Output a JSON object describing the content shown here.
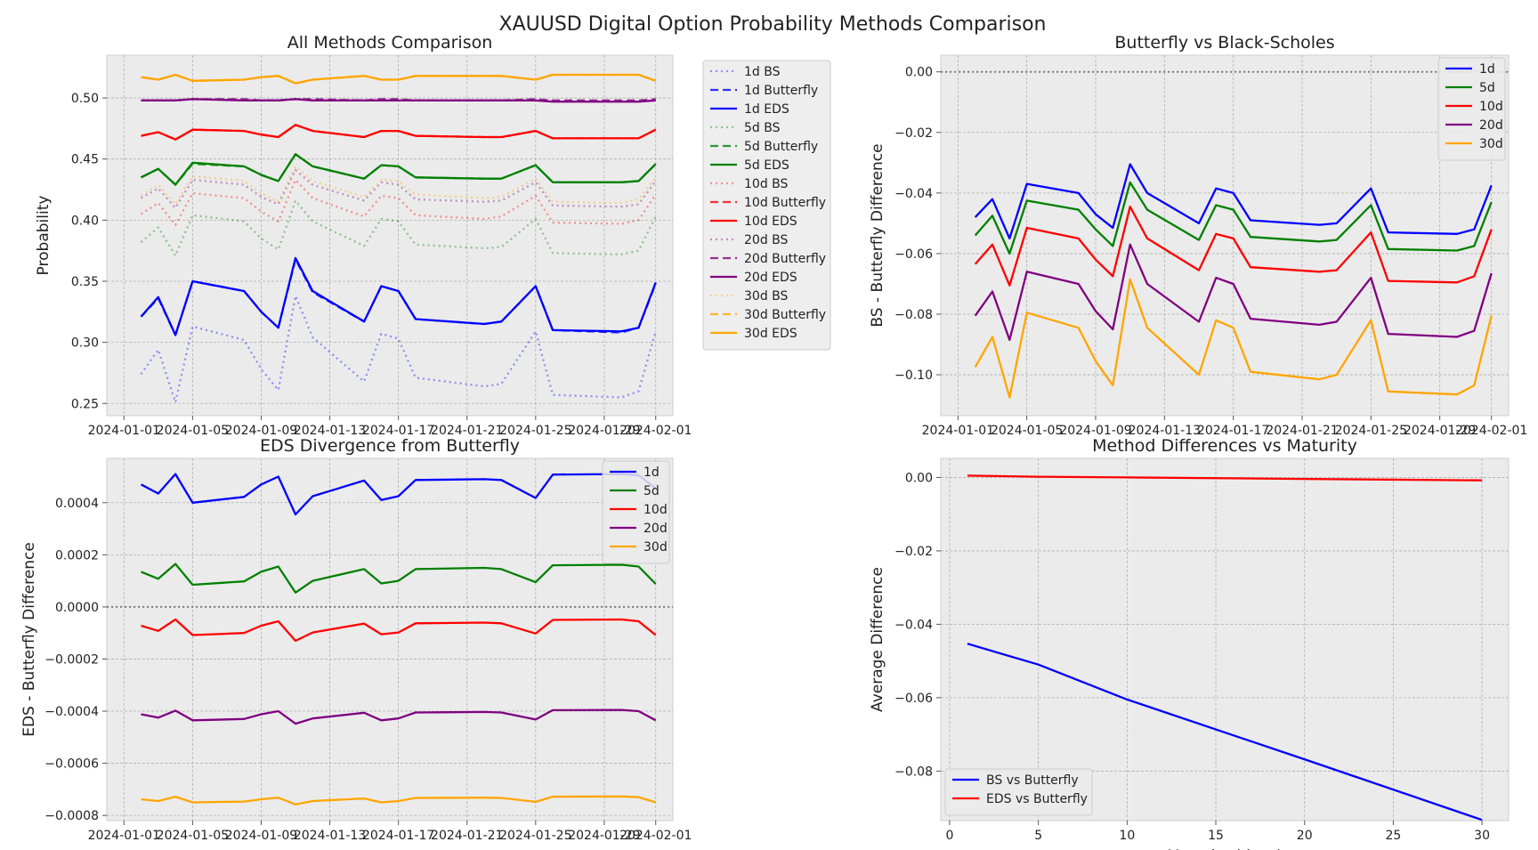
{
  "suptitle": "XAUUSD Digital Option Probability Methods Comparison",
  "colors": {
    "1d": "#0000ff",
    "5d": "#008000",
    "10d": "#ff0000",
    "20d": "#800080",
    "30d": "#ffa500",
    "background": "#ebebeb",
    "grid": "#b0b0b0",
    "zero_line": "#808080"
  },
  "dates": [
    "2024-01-02",
    "2024-01-03",
    "2024-01-04",
    "2024-01-05",
    "2024-01-08",
    "2024-01-09",
    "2024-01-10",
    "2024-01-11",
    "2024-01-12",
    "2024-01-15",
    "2024-01-16",
    "2024-01-17",
    "2024-01-18",
    "2024-01-22",
    "2024-01-23",
    "2024-01-25",
    "2024-01-26",
    "2024-01-30",
    "2024-01-31",
    "2024-02-01"
  ],
  "chart_data": [
    {
      "id": "all_methods",
      "type": "line",
      "title": "All Methods Comparison",
      "xlabel": "",
      "ylabel": "Probability",
      "ylim": [
        0.24,
        0.535
      ],
      "xlim": [
        "2023-12-31",
        "2024-02-02"
      ],
      "yticks": [
        0.25,
        0.3,
        0.35,
        0.4,
        0.45,
        0.5
      ],
      "xticks": [
        "2024-01-01",
        "2024-01-05",
        "2024-01-09",
        "2024-01-13",
        "2024-01-17",
        "2024-01-21",
        "2024-01-25",
        "2024-01-29",
        "2024-02-01"
      ],
      "grid": true,
      "legend": "outside-right",
      "series": [
        {
          "name": "1d BS",
          "color": "1d",
          "style": "dotted",
          "alpha": 0.4,
          "values": [
            0.274,
            0.294,
            0.251,
            0.313,
            0.302,
            0.278,
            0.261,
            0.338,
            0.304,
            0.268,
            0.307,
            0.303,
            0.271,
            0.264,
            0.266,
            0.309,
            0.257,
            0.255,
            0.26,
            0.309
          ]
        },
        {
          "name": "1d Butterfly",
          "color": "1d",
          "style": "dashed",
          "alpha": 0.8,
          "values": [
            0.321,
            0.336,
            0.306,
            0.35,
            0.342,
            0.325,
            0.312,
            0.368,
            0.341,
            0.317,
            0.346,
            0.342,
            0.319,
            0.315,
            0.317,
            0.346,
            0.31,
            0.308,
            0.312,
            0.348
          ]
        },
        {
          "name": "1d EDS",
          "color": "1d",
          "style": "solid",
          "alpha": 1,
          "values": [
            0.321,
            0.337,
            0.306,
            0.35,
            0.342,
            0.325,
            0.312,
            0.369,
            0.342,
            0.317,
            0.346,
            0.342,
            0.319,
            0.315,
            0.317,
            0.346,
            0.31,
            0.309,
            0.312,
            0.349
          ]
        },
        {
          "name": "5d BS",
          "color": "5d",
          "style": "dotted",
          "alpha": 0.4,
          "values": [
            0.382,
            0.394,
            0.371,
            0.404,
            0.399,
            0.385,
            0.376,
            0.416,
            0.399,
            0.379,
            0.401,
            0.399,
            0.38,
            0.377,
            0.378,
            0.401,
            0.373,
            0.372,
            0.375,
            0.403
          ]
        },
        {
          "name": "5d Butterfly",
          "color": "5d",
          "style": "dashed",
          "alpha": 0.8,
          "values": [
            0.435,
            0.442,
            0.429,
            0.446,
            0.444,
            0.437,
            0.432,
            0.454,
            0.444,
            0.434,
            0.445,
            0.444,
            0.435,
            0.434,
            0.434,
            0.445,
            0.431,
            0.431,
            0.432,
            0.446
          ]
        },
        {
          "name": "5d EDS",
          "color": "5d",
          "style": "solid",
          "alpha": 1,
          "values": [
            0.435,
            0.442,
            0.429,
            0.447,
            0.444,
            0.437,
            0.432,
            0.454,
            0.444,
            0.434,
            0.445,
            0.444,
            0.435,
            0.434,
            0.434,
            0.445,
            0.431,
            0.431,
            0.432,
            0.446
          ]
        },
        {
          "name": "10d BS",
          "color": "10d",
          "style": "dotted",
          "alpha": 0.4,
          "values": [
            0.405,
            0.414,
            0.396,
            0.422,
            0.418,
            0.407,
            0.399,
            0.433,
            0.418,
            0.403,
            0.42,
            0.418,
            0.404,
            0.401,
            0.403,
            0.42,
            0.398,
            0.397,
            0.4,
            0.421
          ]
        },
        {
          "name": "10d Butterfly",
          "color": "10d",
          "style": "dashed",
          "alpha": 0.8,
          "values": [
            0.469,
            0.472,
            0.466,
            0.474,
            0.473,
            0.47,
            0.468,
            0.478,
            0.473,
            0.468,
            0.473,
            0.473,
            0.469,
            0.468,
            0.468,
            0.473,
            0.467,
            0.467,
            0.467,
            0.474
          ]
        },
        {
          "name": "10d EDS",
          "color": "10d",
          "style": "solid",
          "alpha": 1,
          "values": [
            0.469,
            0.472,
            0.466,
            0.474,
            0.473,
            0.47,
            0.468,
            0.478,
            0.473,
            0.468,
            0.473,
            0.473,
            0.469,
            0.468,
            0.468,
            0.473,
            0.467,
            0.467,
            0.467,
            0.474
          ]
        },
        {
          "name": "20d BS",
          "color": "20d",
          "style": "dotted",
          "alpha": 0.4,
          "values": [
            0.418,
            0.426,
            0.41,
            0.433,
            0.429,
            0.419,
            0.413,
            0.441,
            0.429,
            0.416,
            0.431,
            0.429,
            0.417,
            0.415,
            0.416,
            0.431,
            0.412,
            0.411,
            0.413,
            0.432
          ]
        },
        {
          "name": "20d Butterfly",
          "color": "20d",
          "style": "dashed",
          "alpha": 0.8,
          "values": [
            0.498,
            0.498,
            0.498,
            0.499,
            0.499,
            0.498,
            0.498,
            0.499,
            0.499,
            0.498,
            0.499,
            0.499,
            0.498,
            0.498,
            0.498,
            0.499,
            0.498,
            0.498,
            0.498,
            0.499
          ]
        },
        {
          "name": "20d EDS",
          "color": "20d",
          "style": "solid",
          "alpha": 1,
          "values": [
            0.498,
            0.498,
            0.498,
            0.499,
            0.498,
            0.498,
            0.498,
            0.499,
            0.498,
            0.498,
            0.498,
            0.498,
            0.498,
            0.498,
            0.498,
            0.498,
            0.497,
            0.497,
            0.497,
            0.498
          ]
        },
        {
          "name": "30d BS",
          "color": "30d",
          "style": "dotted",
          "alpha": 0.4,
          "values": [
            0.42,
            0.429,
            0.413,
            0.436,
            0.432,
            0.422,
            0.415,
            0.444,
            0.432,
            0.419,
            0.433,
            0.432,
            0.421,
            0.418,
            0.419,
            0.434,
            0.415,
            0.414,
            0.417,
            0.435
          ]
        },
        {
          "name": "30d Butterfly",
          "color": "30d",
          "style": "dashed",
          "alpha": 0.8,
          "values": [
            0.517,
            0.515,
            0.519,
            0.514,
            0.515,
            0.517,
            0.518,
            0.512,
            0.515,
            0.518,
            0.515,
            0.515,
            0.518,
            0.518,
            0.518,
            0.515,
            0.519,
            0.519,
            0.519,
            0.514
          ]
        },
        {
          "name": "30d EDS",
          "color": "30d",
          "style": "solid",
          "alpha": 1,
          "values": [
            0.517,
            0.515,
            0.519,
            0.514,
            0.515,
            0.517,
            0.518,
            0.512,
            0.515,
            0.518,
            0.515,
            0.515,
            0.518,
            0.518,
            0.518,
            0.515,
            0.519,
            0.519,
            0.519,
            0.514
          ]
        }
      ]
    },
    {
      "id": "bs_vs_butterfly",
      "type": "line",
      "title": "Butterfly vs Black-Scholes",
      "xlabel": "",
      "ylabel": "BS - Butterfly Difference",
      "ylim": [
        -0.1135,
        0.0055
      ],
      "xlim": [
        "2023-12-31",
        "2024-02-02"
      ],
      "yticks": [
        -0.1,
        -0.08,
        -0.06,
        -0.04,
        -0.02,
        0.0
      ],
      "ytick_labels": [
        "−0.10",
        "−0.08",
        "−0.06",
        "−0.04",
        "−0.02",
        "0.00"
      ],
      "xticks": [
        "2024-01-01",
        "2024-01-05",
        "2024-01-09",
        "2024-01-13",
        "2024-01-17",
        "2024-01-21",
        "2024-01-25",
        "2024-01-29",
        "2024-02-01"
      ],
      "grid": true,
      "legend": "top-right",
      "zero_line": true,
      "series": [
        {
          "name": "1d",
          "color": "1d",
          "values": [
            -0.048,
            -0.042,
            -0.055,
            -0.037,
            -0.04,
            -0.047,
            -0.0515,
            -0.0305,
            -0.04,
            -0.05,
            -0.0385,
            -0.04,
            -0.049,
            -0.0505,
            -0.05,
            -0.0385,
            -0.053,
            -0.0535,
            -0.052,
            -0.0375
          ]
        },
        {
          "name": "5d",
          "color": "5d",
          "values": [
            -0.054,
            -0.0475,
            -0.06,
            -0.0425,
            -0.0455,
            -0.052,
            -0.0575,
            -0.0365,
            -0.0455,
            -0.0555,
            -0.044,
            -0.0455,
            -0.0545,
            -0.056,
            -0.0555,
            -0.044,
            -0.0585,
            -0.059,
            -0.0575,
            -0.043
          ]
        },
        {
          "name": "10d",
          "color": "10d",
          "values": [
            -0.0635,
            -0.057,
            -0.0705,
            -0.0515,
            -0.055,
            -0.062,
            -0.0675,
            -0.0445,
            -0.055,
            -0.0655,
            -0.0535,
            -0.055,
            -0.0645,
            -0.066,
            -0.0655,
            -0.053,
            -0.069,
            -0.0695,
            -0.0675,
            -0.052
          ]
        },
        {
          "name": "20d",
          "color": "20d",
          "values": [
            -0.0805,
            -0.0725,
            -0.0885,
            -0.066,
            -0.07,
            -0.079,
            -0.085,
            -0.057,
            -0.07,
            -0.0825,
            -0.068,
            -0.07,
            -0.0815,
            -0.0835,
            -0.0825,
            -0.068,
            -0.0865,
            -0.0875,
            -0.0855,
            -0.0665
          ]
        },
        {
          "name": "30d",
          "color": "30d",
          "values": [
            -0.0975,
            -0.0875,
            -0.1075,
            -0.0795,
            -0.0845,
            -0.0955,
            -0.1035,
            -0.0685,
            -0.0845,
            -0.1,
            -0.082,
            -0.0845,
            -0.099,
            -0.1015,
            -0.1,
            -0.082,
            -0.1055,
            -0.1065,
            -0.1035,
            -0.0805
          ]
        }
      ]
    },
    {
      "id": "eds_divergence",
      "type": "line",
      "title": "EDS Divergence from Butterfly",
      "xlabel": "",
      "ylabel": "EDS - Butterfly Difference",
      "ylim": [
        -0.00082,
        0.00057
      ],
      "xlim": [
        "2023-12-31",
        "2024-02-02"
      ],
      "yticks": [
        -0.0008,
        -0.0006,
        -0.0004,
        -0.0002,
        0.0,
        0.0002,
        0.0004
      ],
      "ytick_labels": [
        "−0.0008",
        "−0.0006",
        "−0.0004",
        "−0.0002",
        "0.0000",
        "0.0002",
        "0.0004"
      ],
      "xticks": [
        "2024-01-01",
        "2024-01-05",
        "2024-01-09",
        "2024-01-13",
        "2024-01-17",
        "2024-01-21",
        "2024-01-25",
        "2024-01-29",
        "2024-02-01"
      ],
      "grid": true,
      "legend": "top-right",
      "zero_line": true,
      "series": [
        {
          "name": "1d",
          "color": "1d",
          "values": [
            0.00047,
            0.000435,
            0.00051,
            0.0004,
            0.000422,
            0.00047,
            0.0005,
            0.000355,
            0.000425,
            0.000485,
            0.00041,
            0.000425,
            0.000487,
            0.00049,
            0.000487,
            0.000418,
            0.000508,
            0.00051,
            0.000505,
            0.000455
          ]
        },
        {
          "name": "5d",
          "color": "5d",
          "values": [
            0.000135,
            0.000108,
            0.000165,
            8.5e-05,
            9.8e-05,
            0.000135,
            0.000155,
            5.5e-05,
            0.0001,
            0.000145,
            9e-05,
            0.0001,
            0.000145,
            0.00015,
            0.000145,
            9.5e-05,
            0.00016,
            0.000162,
            0.000155,
            8.8e-05
          ]
        },
        {
          "name": "10d",
          "color": "10d",
          "values": [
            -7.2e-05,
            -9.2e-05,
            -4.8e-05,
            -0.000108,
            -0.0001,
            -7.2e-05,
            -5.5e-05,
            -0.00013,
            -9.8e-05,
            -6.4e-05,
            -0.000105,
            -9.8e-05,
            -6.3e-05,
            -6e-05,
            -6.3e-05,
            -0.000102,
            -5e-05,
            -4.8e-05,
            -5.5e-05,
            -0.000108
          ]
        },
        {
          "name": "20d",
          "color": "20d",
          "values": [
            -0.000412,
            -0.000425,
            -0.000398,
            -0.000435,
            -0.00043,
            -0.000412,
            -0.0004,
            -0.000448,
            -0.000428,
            -0.000406,
            -0.000435,
            -0.000428,
            -0.000405,
            -0.000403,
            -0.000405,
            -0.000432,
            -0.000396,
            -0.000395,
            -0.0004,
            -0.000435
          ]
        },
        {
          "name": "30d",
          "color": "30d",
          "values": [
            -0.000738,
            -0.000745,
            -0.000728,
            -0.00075,
            -0.000747,
            -0.000738,
            -0.000732,
            -0.000758,
            -0.000745,
            -0.000735,
            -0.00075,
            -0.000745,
            -0.000733,
            -0.000732,
            -0.000733,
            -0.000748,
            -0.000728,
            -0.000727,
            -0.00073,
            -0.00075
          ]
        }
      ]
    },
    {
      "id": "differences_vs_maturity",
      "type": "line",
      "title": "Method Differences vs Maturity",
      "xlabel": "Maturity (days)",
      "ylabel": "Average Difference",
      "ylim": [
        -0.0935,
        0.0052
      ],
      "xlim": [
        -0.5,
        31.5
      ],
      "xticks": [
        0,
        5,
        10,
        15,
        20,
        25,
        30
      ],
      "yticks": [
        -0.08,
        -0.06,
        -0.04,
        -0.02,
        0.0
      ],
      "ytick_labels": [
        "−0.08",
        "−0.06",
        "−0.04",
        "−0.02",
        "0.00"
      ],
      "grid": true,
      "legend": "bottom-left",
      "series": [
        {
          "name": "BS vs Butterfly",
          "color": "1d",
          "x": [
            1,
            5,
            10,
            20,
            30
          ],
          "values": [
            -0.0453,
            -0.051,
            -0.0605,
            -0.0768,
            -0.0933
          ]
        },
        {
          "name": "EDS vs Butterfly",
          "color": "10d",
          "x": [
            1,
            5,
            10,
            20,
            30
          ],
          "values": [
            0.0005,
            0.0002,
            0.0,
            -0.0004,
            -0.0008
          ]
        }
      ]
    }
  ]
}
